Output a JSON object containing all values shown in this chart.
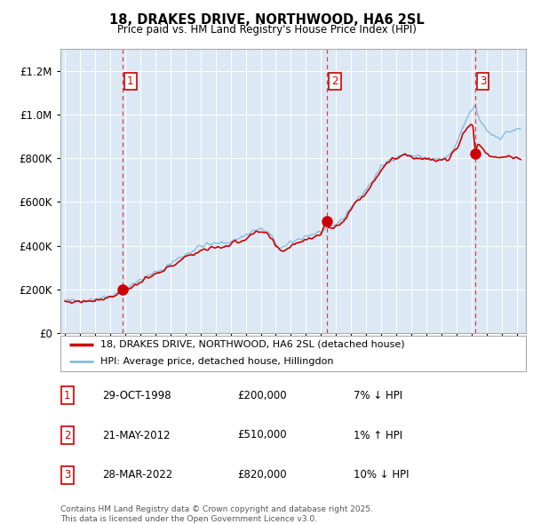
{
  "title1": "18, DRAKES DRIVE, NORTHWOOD, HA6 2SL",
  "title2": "Price paid vs. HM Land Registry's House Price Index (HPI)",
  "sale_dates_num": [
    1998.83,
    2012.39,
    2022.23
  ],
  "sale_prices": [
    200000,
    510000,
    820000
  ],
  "sale_labels": [
    "1",
    "2",
    "3"
  ],
  "sale_info": [
    {
      "label": "1",
      "date": "29-OCT-1998",
      "price": "£200,000",
      "hpi": "7% ↓ HPI"
    },
    {
      "label": "2",
      "date": "21-MAY-2012",
      "price": "£510,000",
      "hpi": "1% ↑ HPI"
    },
    {
      "label": "3",
      "date": "28-MAR-2022",
      "price": "£820,000",
      "hpi": "10% ↓ HPI"
    }
  ],
  "legend1": "18, DRAKES DRIVE, NORTHWOOD, HA6 2SL (detached house)",
  "legend2": "HPI: Average price, detached house, Hillingdon",
  "footer": "Contains HM Land Registry data © Crown copyright and database right 2025.\nThis data is licensed under the Open Government Licence v3.0.",
  "property_color": "#cc0000",
  "hpi_color": "#88bbdd",
  "plot_bg": "#dce9f5",
  "ylim": [
    0,
    1300000
  ],
  "xlim_start": 1994.7,
  "xlim_end": 2025.6
}
